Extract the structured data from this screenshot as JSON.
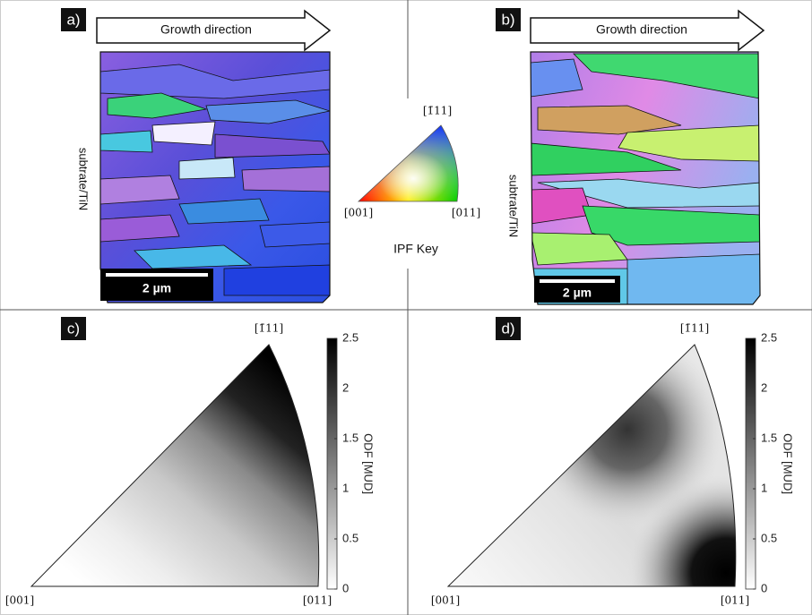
{
  "panels": [
    {
      "label": "a)",
      "arrow": "Growth direction",
      "side_label": "subtrate/TiN",
      "scale_bar": "2 µm"
    },
    {
      "label": "b)",
      "arrow": "Growth direction",
      "side_label": "subtrate/TiN",
      "scale_bar": "2 µm"
    },
    {
      "label": "c)",
      "corners": {
        "top": "[1̄11]",
        "left": "[001]",
        "right": "[011]"
      },
      "colorbar": {
        "label": "ODF [MUD]",
        "ticks": [
          0,
          0.5,
          1,
          1.5,
          2,
          2.5
        ]
      }
    },
    {
      "label": "d)",
      "corners": {
        "top": "[1̄11]",
        "left": "[001]",
        "right": "[011]"
      },
      "colorbar": {
        "label": "ODF [MUD]",
        "ticks": [
          0,
          0.5,
          1,
          1.5,
          2,
          2.5
        ]
      }
    }
  ],
  "ipf_key": {
    "title": "IPF Key",
    "top": "[1̄11]",
    "left": "[001]",
    "right": "[011]"
  }
}
